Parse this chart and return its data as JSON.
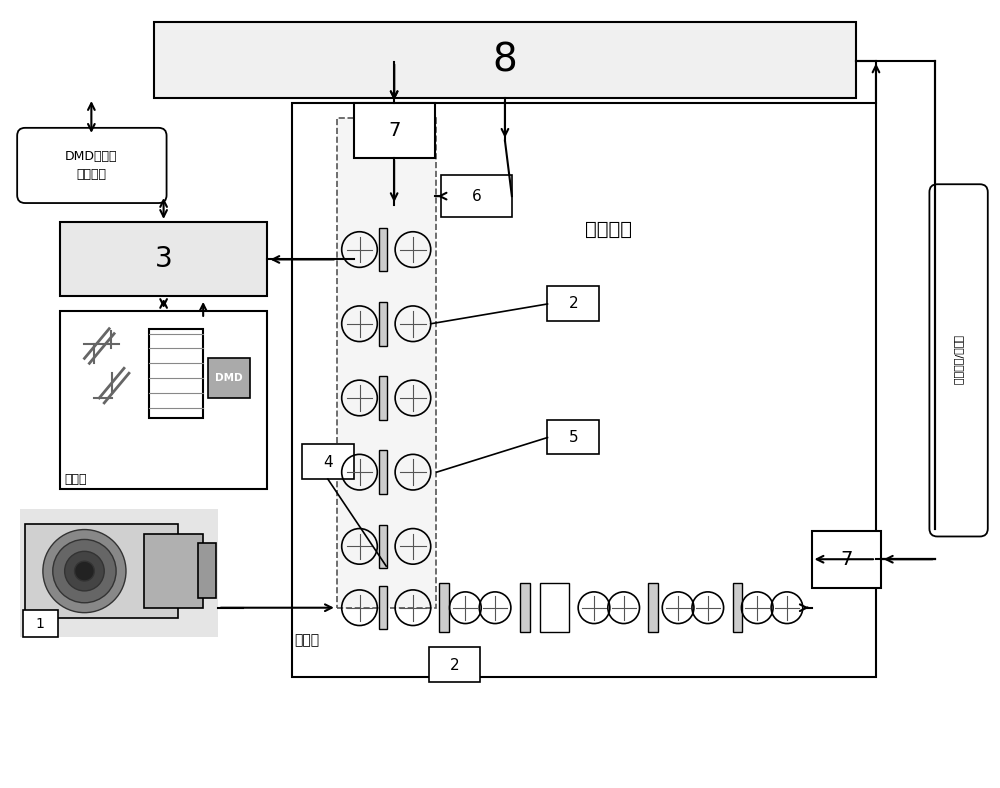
{
  "bg_color": "#ffffff",
  "label_1": "1",
  "label_2": "2",
  "label_3": "3",
  "label_4": "4",
  "label_5": "5",
  "label_6": "6",
  "label_7": "7",
  "label_8": "8",
  "text_dmd_ctrl": "DMD调控及\n反馈数据",
  "text_sync": "同步触发",
  "text_dmd": "DMD",
  "text_mirror": "反射镜",
  "text_incident": "入射光",
  "text_camera_ctrl": "摄像機/探测控制"
}
